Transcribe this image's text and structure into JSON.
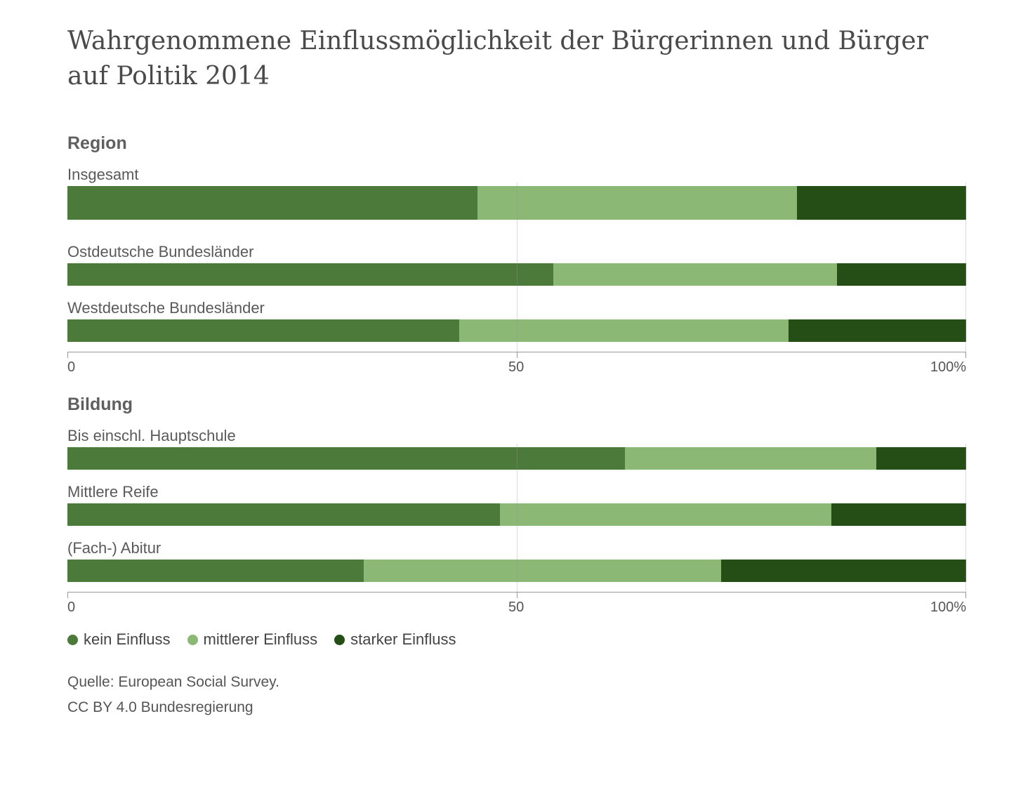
{
  "title": "Wahrgenommene Einflussmöglichkeit der Bürgerinnen und Bürger auf Politik 2014",
  "colors": {
    "kein": "#4b7a3b",
    "mittlerer": "#8bb874",
    "starker": "#244e16"
  },
  "chart_data": [
    {
      "type": "bar",
      "orientation": "horizontal",
      "stacked": true,
      "heading": "Region",
      "categories": [
        "Insgesamt",
        "Ostdeutsche Bundesländer",
        "Westdeutsche Bundesländer"
      ],
      "series": [
        {
          "name": "kein Einfluss",
          "values": [
            45.6,
            54.1,
            43.6
          ]
        },
        {
          "name": "mittlerer Einfluss",
          "values": [
            35.6,
            31.5,
            36.6
          ]
        },
        {
          "name": "starker Einfluss",
          "values": [
            18.8,
            14.4,
            19.8
          ]
        }
      ],
      "xlim": [
        0,
        100
      ],
      "xticks": [
        "0",
        "50",
        "100%"
      ],
      "grid": true
    },
    {
      "type": "bar",
      "orientation": "horizontal",
      "stacked": true,
      "heading": "Bildung",
      "categories": [
        "Bis einschl. Hauptschule",
        "Mittlere Reife",
        "(Fach-) Abitur"
      ],
      "series": [
        {
          "name": "kein Einfluss",
          "values": [
            62.0,
            48.1,
            33.0
          ]
        },
        {
          "name": "mittlerer Einfluss",
          "values": [
            28.0,
            36.9,
            39.7
          ]
        },
        {
          "name": "starker Einfluss",
          "values": [
            10.0,
            15.0,
            27.3
          ]
        }
      ],
      "xlim": [
        0,
        100
      ],
      "xticks": [
        "0",
        "50",
        "100%"
      ],
      "grid": true
    }
  ],
  "legend": [
    {
      "label": "kein Einfluss",
      "color": "#4b7a3b"
    },
    {
      "label": "mittlerer Einfluss",
      "color": "#8bb874"
    },
    {
      "label": "starker Einfluss",
      "color": "#244e16"
    }
  ],
  "source": {
    "line1": "Quelle: European Social Survey.",
    "line2": "CC BY 4.0 Bundesregierung"
  }
}
